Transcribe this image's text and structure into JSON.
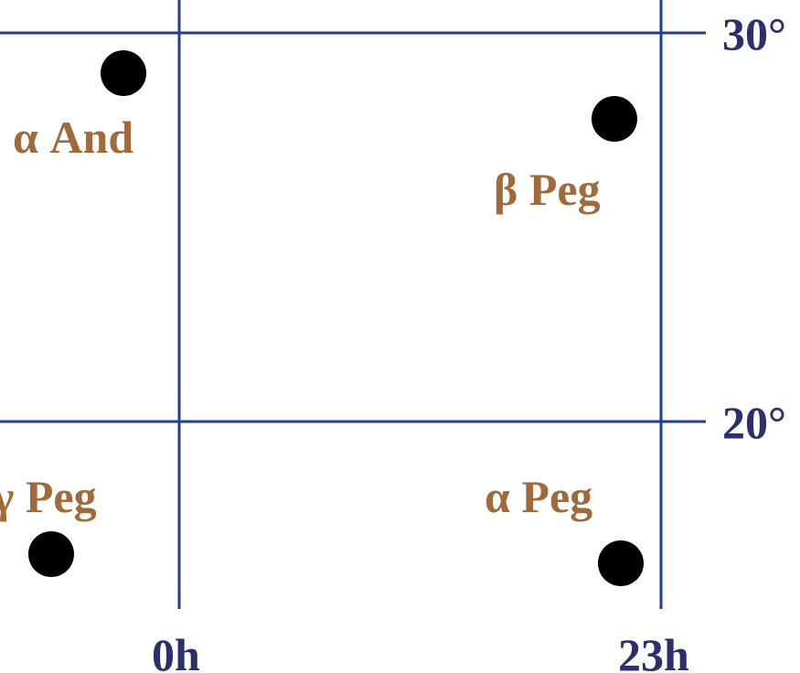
{
  "colors": {
    "grid": "#1f3f99",
    "star_label": "#a06a3a",
    "axis_label": "#2b2f6e",
    "star": "#000000"
  },
  "chart_data": {
    "type": "scatter",
    "title": "",
    "grid_lines": {
      "ra_hours": [
        "0h",
        "23h"
      ],
      "dec_degrees": [
        "30°",
        "20°"
      ]
    },
    "stars": [
      {
        "name": "α And",
        "ra_h": 0.14,
        "dec_deg": 29.1
      },
      {
        "name": "β Peg",
        "ra_h": 23.06,
        "dec_deg": 28.1
      },
      {
        "name": "γ Peg",
        "ra_h": 0.22,
        "dec_deg": 15.2
      },
      {
        "name": "α Peg",
        "ra_h": 23.08,
        "dec_deg": 15.2
      }
    ],
    "axis_labels": {
      "ra": [
        "0h",
        "23h"
      ],
      "dec": [
        "30°",
        "20°"
      ]
    }
  }
}
